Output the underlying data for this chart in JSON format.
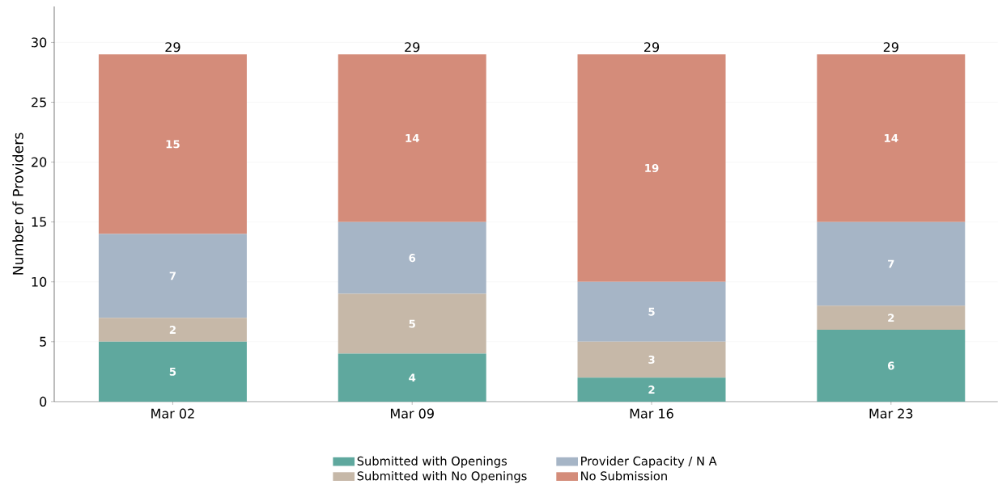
{
  "chart_data": {
    "type": "bar",
    "stacked": true,
    "ylabel": "Number of Providers",
    "categories": [
      "Mar 02",
      "Mar 09",
      "Mar 16",
      "Mar 23"
    ],
    "series": [
      {
        "name": "Submitted with Openings",
        "color": "#5fa89e",
        "values": [
          5,
          4,
          2,
          6
        ]
      },
      {
        "name": "Submitted with No Openings",
        "color": "#c6b8a8",
        "values": [
          2,
          5,
          3,
          2
        ]
      },
      {
        "name": "Provider Capacity / N A",
        "color": "#a6b5c6",
        "values": [
          7,
          6,
          5,
          7
        ]
      },
      {
        "name": "No Submission",
        "color": "#d48c7a",
        "values": [
          15,
          14,
          19,
          14
        ]
      }
    ],
    "ylim": [
      0,
      33
    ],
    "yticks": [
      0,
      5,
      10,
      15,
      20,
      25,
      30
    ],
    "grid": "y",
    "legend": "bottom",
    "data_labels": true,
    "totals": [
      "29",
      "29",
      "29",
      "29"
    ]
  }
}
